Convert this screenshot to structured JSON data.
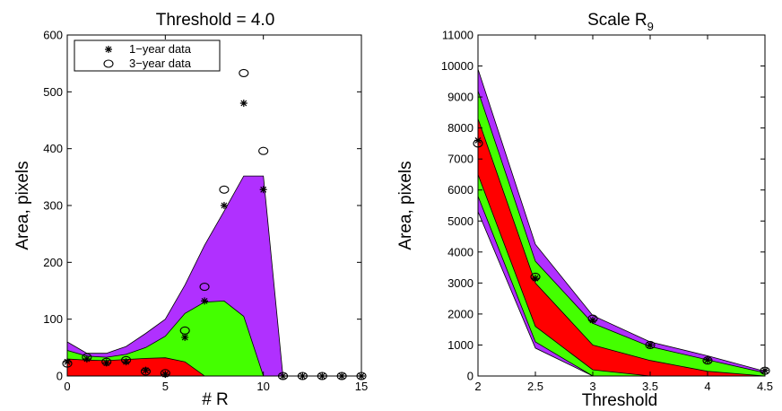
{
  "chart_data": [
    {
      "type": "area",
      "title": "Threshold = 4.0",
      "xlabel": "# R",
      "ylabel": "Area, pixels",
      "xlim": [
        0,
        15
      ],
      "ylim": [
        0,
        600
      ],
      "xticks": [
        0,
        5,
        10,
        15
      ],
      "yticks": [
        0,
        100,
        200,
        300,
        400,
        500,
        600
      ],
      "grid": false,
      "legend_position": "top-left",
      "bands": [
        {
          "color": "#b030ff",
          "upper": [
            [
              0,
              60
            ],
            [
              1,
              40
            ],
            [
              2,
              40
            ],
            [
              3,
              52
            ],
            [
              4,
              75
            ],
            [
              5,
              100
            ],
            [
              6,
              160
            ],
            [
              7,
              230
            ],
            [
              8,
              290
            ],
            [
              9,
              352
            ],
            [
              10,
              352
            ],
            [
              11,
              0
            ],
            [
              15,
              0
            ]
          ],
          "lower": [
            [
              0,
              0
            ],
            [
              15,
              0
            ]
          ]
        },
        {
          "color": "#44ff00",
          "upper": [
            [
              0,
              45
            ],
            [
              1,
              35
            ],
            [
              2,
              33
            ],
            [
              3,
              38
            ],
            [
              4,
              50
            ],
            [
              5,
              70
            ],
            [
              6,
              110
            ],
            [
              7,
              130
            ],
            [
              8,
              132
            ],
            [
              9,
              105
            ],
            [
              10,
              0
            ],
            [
              15,
              0
            ]
          ],
          "lower": [
            [
              0,
              0
            ],
            [
              15,
              0
            ]
          ]
        },
        {
          "color": "#ff0000",
          "upper": [
            [
              0,
              30
            ],
            [
              1,
              28
            ],
            [
              2,
              27
            ],
            [
              3,
              29
            ],
            [
              4,
              31
            ],
            [
              5,
              32
            ],
            [
              6,
              25
            ],
            [
              7,
              0
            ],
            [
              15,
              0
            ]
          ],
          "lower": [
            [
              0,
              0
            ],
            [
              15,
              0
            ]
          ]
        }
      ],
      "series": [
        {
          "name": "1−year data",
          "marker": "star",
          "x": [
            0,
            1,
            2,
            3,
            4,
            5,
            6,
            7,
            8,
            9,
            10,
            11,
            12,
            13,
            14,
            15
          ],
          "y": [
            25,
            30,
            23,
            25,
            10,
            3,
            68,
            132,
            300,
            480,
            328,
            0,
            0,
            0,
            0,
            0
          ]
        },
        {
          "name": "3−year data",
          "marker": "circle",
          "x": [
            0,
            1,
            2,
            3,
            4,
            5,
            6,
            7,
            8,
            9,
            10,
            11,
            12,
            13,
            14,
            15
          ],
          "y": [
            22,
            33,
            25,
            28,
            8,
            5,
            80,
            157,
            328,
            533,
            396,
            0,
            0,
            0,
            0,
            0
          ]
        }
      ]
    },
    {
      "type": "area",
      "title": "Scale R",
      "title_subscript": "9",
      "xlabel": "Threshold",
      "ylabel": "Area, pixels",
      "xlim": [
        2,
        4.5
      ],
      "ylim": [
        0,
        11000
      ],
      "xticks": [
        2,
        2.5,
        3,
        3.5,
        4,
        4.5
      ],
      "yticks": [
        0,
        1000,
        2000,
        3000,
        4000,
        5000,
        6000,
        7000,
        8000,
        9000,
        10000,
        11000
      ],
      "grid": false,
      "bands": [
        {
          "color": "#b030ff",
          "upper": [
            [
              2,
              9900
            ],
            [
              2.5,
              4250
            ],
            [
              3,
              1950
            ],
            [
              3.5,
              1100
            ],
            [
              4,
              650
            ],
            [
              4.5,
              150
            ]
          ],
          "lower": [
            [
              2,
              5300
            ],
            [
              2.5,
              900
            ],
            [
              3,
              0
            ],
            [
              3.5,
              0
            ],
            [
              4,
              0
            ],
            [
              4.5,
              0
            ]
          ]
        },
        {
          "color": "#44ff00",
          "upper": [
            [
              2,
              9200
            ],
            [
              2.5,
              3700
            ],
            [
              3,
              1700
            ],
            [
              3.5,
              950
            ],
            [
              4,
              520
            ],
            [
              4.5,
              100
            ]
          ],
          "lower": [
            [
              2,
              5800
            ],
            [
              2.5,
              1100
            ],
            [
              3,
              0
            ],
            [
              3.5,
              0
            ],
            [
              4,
              0
            ],
            [
              4.5,
              0
            ]
          ]
        },
        {
          "color": "#ff0000",
          "upper": [
            [
              2,
              8300
            ],
            [
              2.5,
              3000
            ],
            [
              3,
              1000
            ],
            [
              3.5,
              500
            ],
            [
              4,
              150
            ],
            [
              4.5,
              0
            ]
          ],
          "lower": [
            [
              2,
              6500
            ],
            [
              2.5,
              1600
            ],
            [
              3,
              200
            ],
            [
              3.5,
              0
            ],
            [
              4,
              0
            ],
            [
              4.5,
              0
            ]
          ]
        }
      ],
      "series": [
        {
          "marker": "star",
          "x": [
            2,
            2.5,
            3,
            3.5,
            4,
            4.5
          ],
          "y": [
            7600,
            3150,
            1800,
            1000,
            520,
            180
          ]
        },
        {
          "marker": "circle",
          "x": [
            2,
            2.5,
            3,
            3.5,
            4,
            4.5
          ],
          "y": [
            7500,
            3200,
            1850,
            1000,
            500,
            170
          ]
        }
      ]
    }
  ]
}
